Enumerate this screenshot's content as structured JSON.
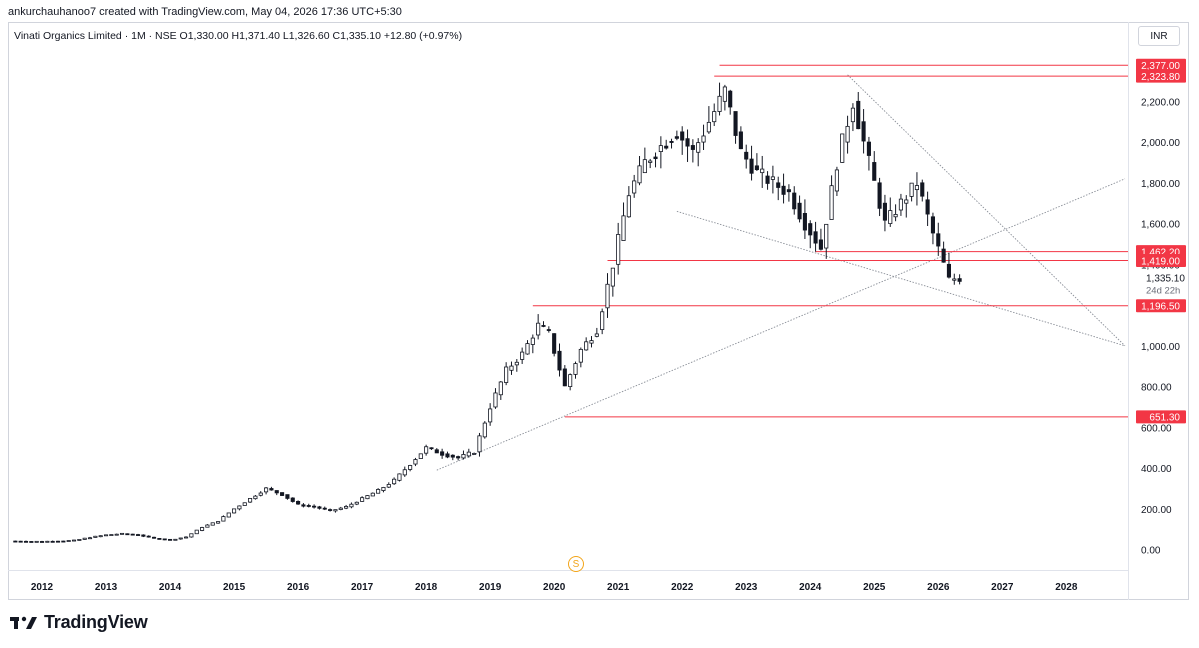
{
  "header": {
    "created_by": "ankurchauhanoo7 created with TradingView.com, May 04, 2026 17:36 UTC+5:30"
  },
  "legend": {
    "text": "Vinati Organics Limited · 1M · NSE  O1,330.00  H1,371.40  L1,326.60  C1,335.10  +12.80 (+0.97%)"
  },
  "currency": "INR",
  "event_marker": "S",
  "footer": {
    "brand": "TradingView"
  },
  "colors": {
    "candle": "#131722",
    "level_line": "#f23645",
    "level_label_bg": "#f23645",
    "trendline": "#8a8f98",
    "axis_text": "#131722",
    "event_marker": "#f2a51a"
  },
  "chart_data": {
    "type": "candlestick",
    "interval": "1M",
    "x_range": [
      "2011-07",
      "2028-12"
    ],
    "y_range": [
      -100,
      2550
    ],
    "y_ticks": [
      "0.00",
      "200.00",
      "400.00",
      "600.00",
      "800.00",
      "1,000.00",
      "1,200.00",
      "1,400.00",
      "1,600.00",
      "1,800.00",
      "2,000.00",
      "2,200.00"
    ],
    "y_tick_values": [
      0,
      200,
      400,
      600,
      800,
      1000,
      1200,
      1400,
      1600,
      1800,
      2000,
      2200
    ],
    "x_ticks": [
      "2012",
      "2013",
      "2014",
      "2015",
      "2016",
      "2017",
      "2018",
      "2019",
      "2020",
      "2021",
      "2022",
      "2023",
      "2024",
      "2025",
      "2026",
      "2027",
      "2028"
    ],
    "last_price": {
      "value": 1335.1,
      "label": "1,335.10",
      "countdown": "24d 22h"
    },
    "horizontal_levels": [
      {
        "value": 2377.0,
        "label": "2,377.00",
        "start": "2022-08"
      },
      {
        "value": 2323.8,
        "label": "2,323.80",
        "start": "2022-07"
      },
      {
        "value": 1462.2,
        "label": "1,462.20",
        "start": "2024-02"
      },
      {
        "value": 1419.0,
        "label": "1,419.00",
        "start": "2020-11"
      },
      {
        "value": 1196.5,
        "label": "1,196.50",
        "start": "2019-09"
      },
      {
        "value": 651.3,
        "label": "651.30",
        "start": "2020-03"
      }
    ],
    "trendlines": [
      {
        "from": [
          "2018-03",
          390
        ],
        "to": [
          "2028-12",
          1820
        ]
      },
      {
        "from": [
          "2021-12",
          1660
        ],
        "to": [
          "2028-12",
          1000
        ]
      },
      {
        "from": [
          "2024-08",
          2330
        ],
        "to": [
          "2028-12",
          1000
        ]
      }
    ],
    "candles_monthly_close": [
      [
        "2011-07",
        42
      ],
      [
        "2011-10",
        40
      ],
      [
        "2012-01",
        40
      ],
      [
        "2012-04",
        42
      ],
      [
        "2012-07",
        45
      ],
      [
        "2012-10",
        60
      ],
      [
        "2013-01",
        72
      ],
      [
        "2013-04",
        78
      ],
      [
        "2013-07",
        72
      ],
      [
        "2013-10",
        55
      ],
      [
        "2014-01",
        48
      ],
      [
        "2014-04",
        62
      ],
      [
        "2014-07",
        110
      ],
      [
        "2014-10",
        140
      ],
      [
        "2015-01",
        200
      ],
      [
        "2015-04",
        250
      ],
      [
        "2015-07",
        300
      ],
      [
        "2015-10",
        270
      ],
      [
        "2016-01",
        220
      ],
      [
        "2016-04",
        210
      ],
      [
        "2016-07",
        190
      ],
      [
        "2016-10",
        210
      ],
      [
        "2017-01",
        250
      ],
      [
        "2017-04",
        290
      ],
      [
        "2017-07",
        340
      ],
      [
        "2017-10",
        420
      ],
      [
        "2018-01",
        500
      ],
      [
        "2018-04",
        470
      ],
      [
        "2018-07",
        450
      ],
      [
        "2018-10",
        480
      ],
      [
        "2019-01",
        700
      ],
      [
        "2019-04",
        880
      ],
      [
        "2019-07",
        960
      ],
      [
        "2019-10",
        1100
      ],
      [
        "2019-12",
        1060
      ],
      [
        "2020-03",
        800
      ],
      [
        "2020-06",
        980
      ],
      [
        "2020-09",
        1080
      ],
      [
        "2020-12",
        1400
      ],
      [
        "2021-03",
        1750
      ],
      [
        "2021-06",
        1900
      ],
      [
        "2021-09",
        1980
      ],
      [
        "2021-12",
        2050
      ],
      [
        "2022-03",
        1950
      ],
      [
        "2022-06",
        2100
      ],
      [
        "2022-09",
        2250
      ],
      [
        "2022-12",
        1950
      ],
      [
        "2023-03",
        1850
      ],
      [
        "2023-06",
        1800
      ],
      [
        "2023-09",
        1750
      ],
      [
        "2023-12",
        1600
      ],
      [
        "2024-03",
        1480
      ],
      [
        "2024-06",
        1900
      ],
      [
        "2024-09",
        2200
      ],
      [
        "2024-12",
        1900
      ],
      [
        "2025-03",
        1600
      ],
      [
        "2025-06",
        1700
      ],
      [
        "2025-09",
        1800
      ],
      [
        "2025-12",
        1550
      ],
      [
        "2026-02",
        1400
      ],
      [
        "2026-03",
        1322
      ],
      [
        "2026-04",
        1330
      ],
      [
        "2026-05",
        1335.1
      ]
    ]
  }
}
